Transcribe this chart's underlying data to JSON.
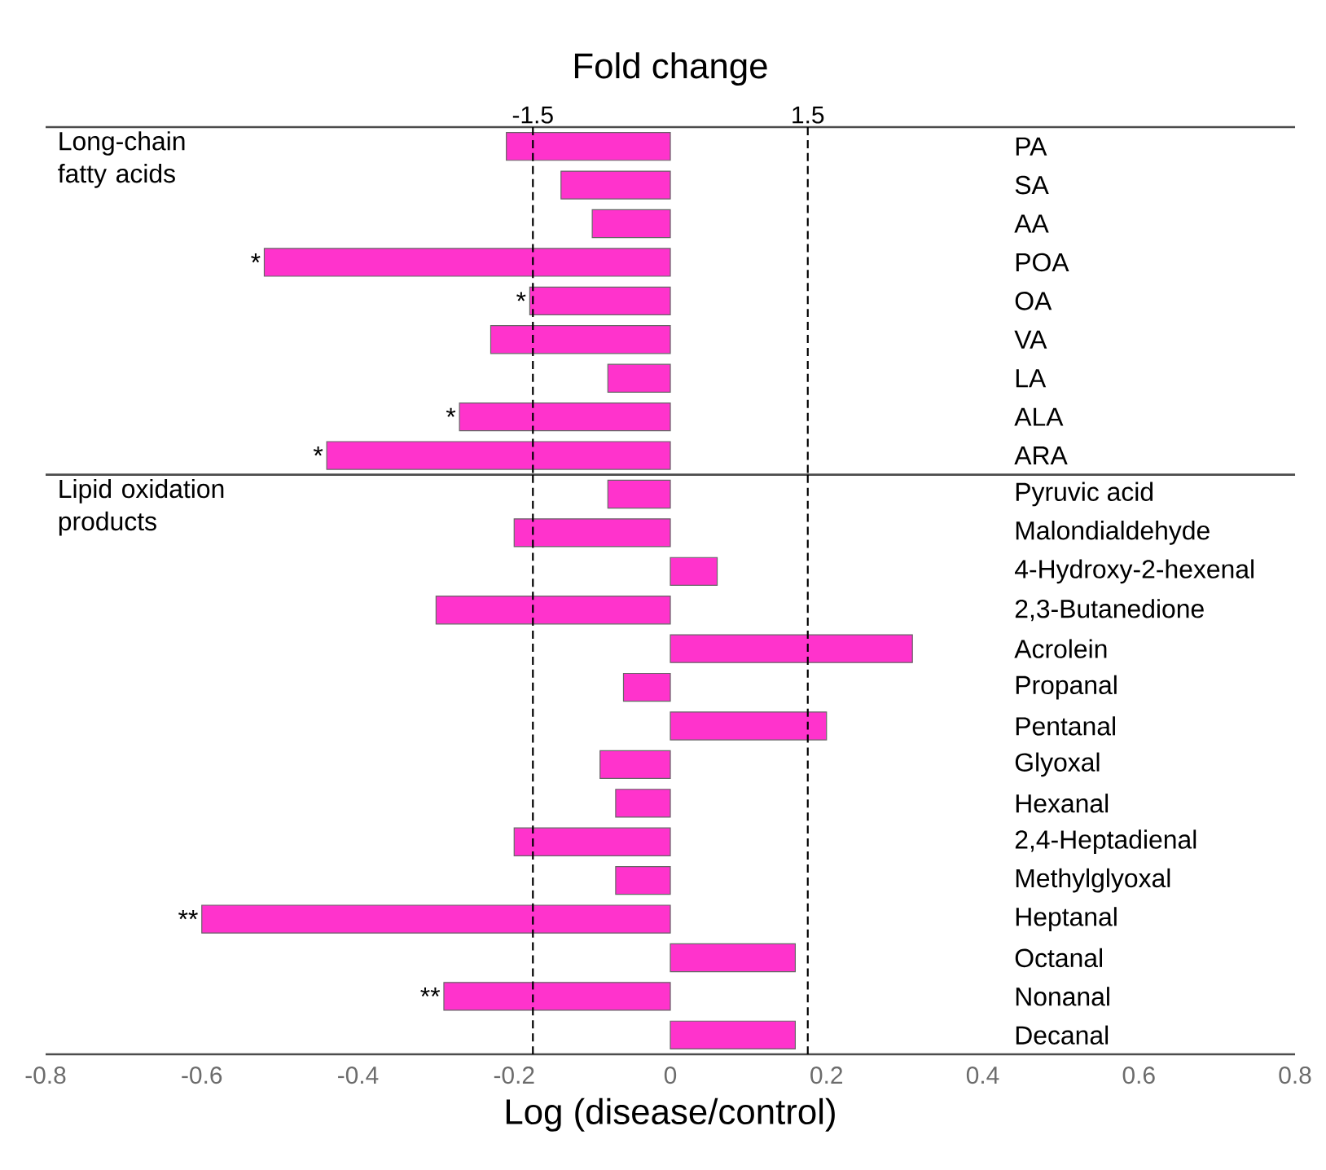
{
  "chart_data": [
    {
      "type": "bar",
      "orientation": "horizontal",
      "title": "Fold change",
      "categories": [
        "PA",
        "SA",
        "AA",
        "POA",
        "OA",
        "VA",
        "LA",
        "ALA",
        "ARA"
      ],
      "values": [
        -0.21,
        -0.14,
        -0.1,
        -0.52,
        -0.18,
        -0.23,
        -0.08,
        -0.27,
        -0.44
      ],
      "color": "#ff33cc",
      "xlim": [
        -0.8,
        0.8
      ],
      "tick_labels": false,
      "ref_lines": [
        {
          "axis": "x",
          "value": -0.176,
          "line_style": "dashed"
        },
        {
          "axis": "x",
          "value": 0.176,
          "line_style": "dashed"
        }
      ],
      "annotations": [
        "Long-chain fatty acids",
        "-1.5",
        "1.5",
        {
          "text": "*",
          "x": -0.52,
          "y": "POA"
        },
        {
          "text": "*",
          "x": -0.18,
          "y": "OA"
        },
        {
          "text": "*",
          "x": -0.27,
          "y": "ALA"
        },
        {
          "text": "*",
          "x": -0.44,
          "y": "ARA"
        }
      ]
    },
    {
      "type": "bar",
      "orientation": "horizontal",
      "xlabel": "Log (disease/control)",
      "categories": [
        "Pyruvic acid",
        "Malondialdehyde",
        "4-Hydroxy-2-hexenal",
        "2,3-Butanedione",
        "Acrolein",
        "Propanal",
        "Pentanal",
        "Glyoxal",
        "Hexanal",
        "2,4-Heptadienal",
        "Methylglyoxal",
        "Heptanal",
        "Octanal",
        "Nonanal",
        "Decanal"
      ],
      "values": [
        -0.08,
        -0.2,
        0.06,
        -0.3,
        0.31,
        -0.06,
        0.2,
        -0.09,
        -0.07,
        -0.2,
        -0.07,
        -0.6,
        0.16,
        -0.29,
        0.16
      ],
      "color": "#ff33cc",
      "xlim": [
        -0.8,
        0.8
      ],
      "xticks": [
        -0.8,
        -0.6,
        -0.4,
        -0.2,
        0,
        0.2,
        0.4,
        0.6,
        0.8
      ],
      "tick_labels": "x",
      "ref_lines": [
        {
          "axis": "x",
          "value": -0.176,
          "line_style": "dashed"
        },
        {
          "axis": "x",
          "value": 0.176,
          "line_style": "dashed"
        }
      ],
      "annotations": [
        "Lipid oxidation products",
        {
          "text": "**",
          "x": -0.6,
          "y": "Heptanal"
        },
        {
          "text": "**",
          "x": -0.29,
          "y": "Nonanal"
        }
      ]
    }
  ]
}
